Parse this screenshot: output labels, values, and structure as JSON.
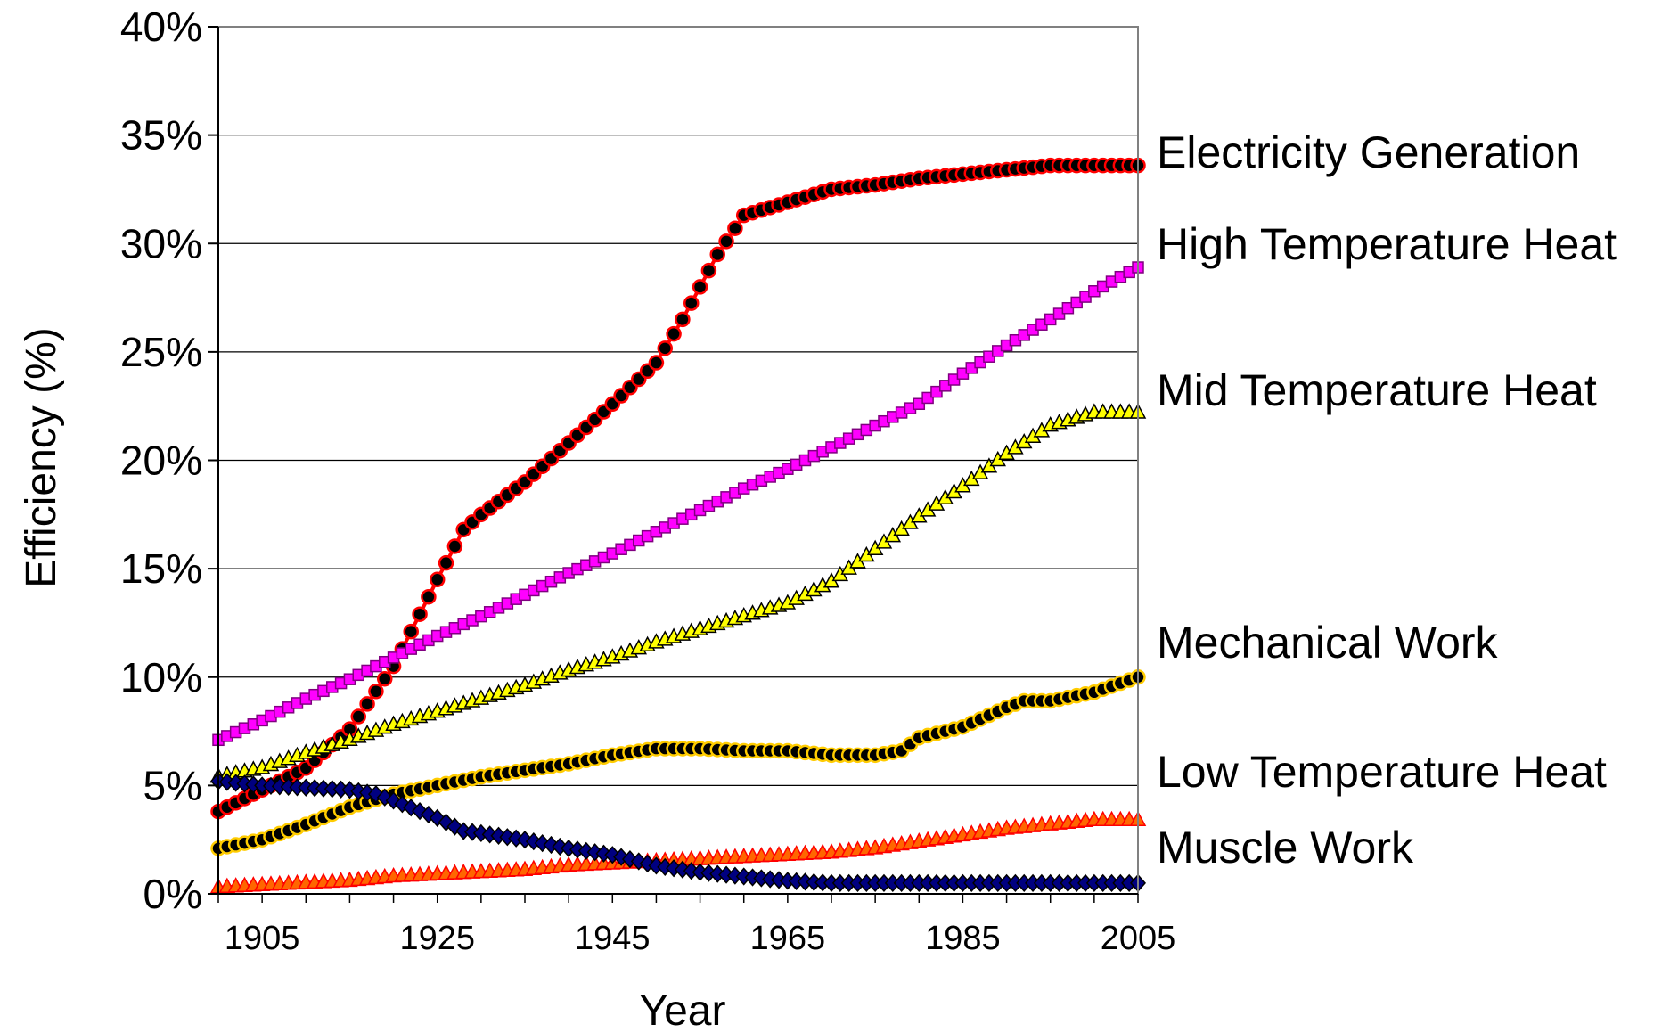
{
  "chart_data": {
    "type": "line",
    "title": "",
    "xlabel": "Year",
    "ylabel": "Efficiency (%)",
    "x_range": [
      1900,
      2005
    ],
    "ylim": [
      0,
      40
    ],
    "y_ticks": [
      0,
      5,
      10,
      15,
      20,
      25,
      30,
      35,
      40
    ],
    "y_tick_labels": [
      "0%",
      "5%",
      "10%",
      "15%",
      "20%",
      "25%",
      "30%",
      "35%",
      "40%"
    ],
    "x_ticks": [
      1905,
      1925,
      1945,
      1965,
      1985,
      2005
    ],
    "x_tick_labels": [
      "1905",
      "1925",
      "1945",
      "1965",
      "1985",
      "2005"
    ],
    "grid": "horizontal",
    "legend": "labels at right end of each series",
    "series": [
      {
        "name": "Electricity Generation",
        "marker": "circle",
        "color": "#000000",
        "edge_color": "#ff0000",
        "points": [
          [
            1900,
            3.8
          ],
          [
            1905,
            4.8
          ],
          [
            1910,
            5.8
          ],
          [
            1915,
            7.6
          ],
          [
            1920,
            10.5
          ],
          [
            1925,
            14.5
          ],
          [
            1928,
            16.8
          ],
          [
            1930,
            17.5
          ],
          [
            1935,
            19.0
          ],
          [
            1940,
            20.8
          ],
          [
            1945,
            22.6
          ],
          [
            1950,
            24.5
          ],
          [
            1953,
            26.5
          ],
          [
            1957,
            29.5
          ],
          [
            1960,
            31.3
          ],
          [
            1965,
            31.9
          ],
          [
            1970,
            32.5
          ],
          [
            1975,
            32.7
          ],
          [
            1980,
            33.0
          ],
          [
            1985,
            33.2
          ],
          [
            1990,
            33.4
          ],
          [
            1995,
            33.6
          ],
          [
            2000,
            33.6
          ],
          [
            2005,
            33.6
          ]
        ]
      },
      {
        "name": "High Temperature Heat",
        "marker": "square",
        "color": "#ff00ff",
        "edge_color": "#800080",
        "points": [
          [
            1900,
            7.1
          ],
          [
            1905,
            8.0
          ],
          [
            1910,
            9.0
          ],
          [
            1915,
            9.9
          ],
          [
            1920,
            10.9
          ],
          [
            1925,
            11.9
          ],
          [
            1930,
            12.8
          ],
          [
            1935,
            13.8
          ],
          [
            1940,
            14.8
          ],
          [
            1945,
            15.7
          ],
          [
            1950,
            16.7
          ],
          [
            1955,
            17.7
          ],
          [
            1960,
            18.7
          ],
          [
            1965,
            19.6
          ],
          [
            1970,
            20.6
          ],
          [
            1975,
            21.6
          ],
          [
            1980,
            22.6
          ],
          [
            1985,
            24.0
          ],
          [
            1990,
            25.3
          ],
          [
            1995,
            26.5
          ],
          [
            2000,
            27.8
          ],
          [
            2005,
            28.9
          ]
        ]
      },
      {
        "name": "Mid Temperature Heat",
        "marker": "triangle",
        "color": "#ffff00",
        "edge_color": "#000000",
        "points": [
          [
            1900,
            5.4
          ],
          [
            1905,
            5.8
          ],
          [
            1910,
            6.5
          ],
          [
            1915,
            7.1
          ],
          [
            1920,
            7.8
          ],
          [
            1925,
            8.4
          ],
          [
            1930,
            9.0
          ],
          [
            1935,
            9.6
          ],
          [
            1940,
            10.3
          ],
          [
            1945,
            10.9
          ],
          [
            1950,
            11.6
          ],
          [
            1955,
            12.2
          ],
          [
            1960,
            12.8
          ],
          [
            1965,
            13.4
          ],
          [
            1970,
            14.4
          ],
          [
            1975,
            15.9
          ],
          [
            1980,
            17.4
          ],
          [
            1985,
            18.8
          ],
          [
            1990,
            20.3
          ],
          [
            1995,
            21.6
          ],
          [
            2000,
            22.2
          ],
          [
            2005,
            22.2
          ]
        ]
      },
      {
        "name": "Mechanical Work",
        "marker": "circle",
        "color": "#000000",
        "edge_color": "#ffcc00",
        "points": [
          [
            1900,
            2.1
          ],
          [
            1905,
            2.5
          ],
          [
            1910,
            3.2
          ],
          [
            1915,
            4.0
          ],
          [
            1920,
            4.6
          ],
          [
            1925,
            5.0
          ],
          [
            1930,
            5.4
          ],
          [
            1935,
            5.7
          ],
          [
            1940,
            6.0
          ],
          [
            1945,
            6.4
          ],
          [
            1950,
            6.7
          ],
          [
            1955,
            6.7
          ],
          [
            1960,
            6.6
          ],
          [
            1965,
            6.6
          ],
          [
            1970,
            6.4
          ],
          [
            1975,
            6.4
          ],
          [
            1978,
            6.6
          ],
          [
            1980,
            7.2
          ],
          [
            1985,
            7.7
          ],
          [
            1990,
            8.6
          ],
          [
            1992,
            8.9
          ],
          [
            1995,
            8.9
          ],
          [
            2000,
            9.3
          ],
          [
            2005,
            10.0
          ]
        ]
      },
      {
        "name": "Low Temperature Heat",
        "marker": "triangle",
        "color": "#ff6600",
        "edge_color": "#ff0000",
        "points": [
          [
            1900,
            0.3
          ],
          [
            1905,
            0.4
          ],
          [
            1910,
            0.5
          ],
          [
            1915,
            0.6
          ],
          [
            1920,
            0.8
          ],
          [
            1925,
            0.9
          ],
          [
            1930,
            1.0
          ],
          [
            1935,
            1.1
          ],
          [
            1940,
            1.3
          ],
          [
            1945,
            1.4
          ],
          [
            1950,
            1.5
          ],
          [
            1955,
            1.6
          ],
          [
            1960,
            1.7
          ],
          [
            1965,
            1.8
          ],
          [
            1970,
            1.9
          ],
          [
            1975,
            2.1
          ],
          [
            1980,
            2.4
          ],
          [
            1985,
            2.7
          ],
          [
            1990,
            3.0
          ],
          [
            1995,
            3.2
          ],
          [
            2000,
            3.4
          ],
          [
            2005,
            3.4
          ]
        ]
      },
      {
        "name": "Muscle Work",
        "marker": "diamond",
        "color": "#000080",
        "edge_color": "#000000",
        "points": [
          [
            1900,
            5.2
          ],
          [
            1905,
            5.0
          ],
          [
            1910,
            4.9
          ],
          [
            1915,
            4.8
          ],
          [
            1918,
            4.6
          ],
          [
            1920,
            4.3
          ],
          [
            1925,
            3.5
          ],
          [
            1928,
            2.9
          ],
          [
            1930,
            2.8
          ],
          [
            1935,
            2.5
          ],
          [
            1940,
            2.1
          ],
          [
            1945,
            1.8
          ],
          [
            1950,
            1.3
          ],
          [
            1955,
            1.0
          ],
          [
            1960,
            0.8
          ],
          [
            1965,
            0.6
          ],
          [
            1970,
            0.5
          ],
          [
            1975,
            0.5
          ],
          [
            1980,
            0.5
          ],
          [
            1985,
            0.5
          ],
          [
            1990,
            0.5
          ],
          [
            1995,
            0.5
          ],
          [
            2000,
            0.5
          ],
          [
            2005,
            0.5
          ]
        ]
      }
    ]
  }
}
